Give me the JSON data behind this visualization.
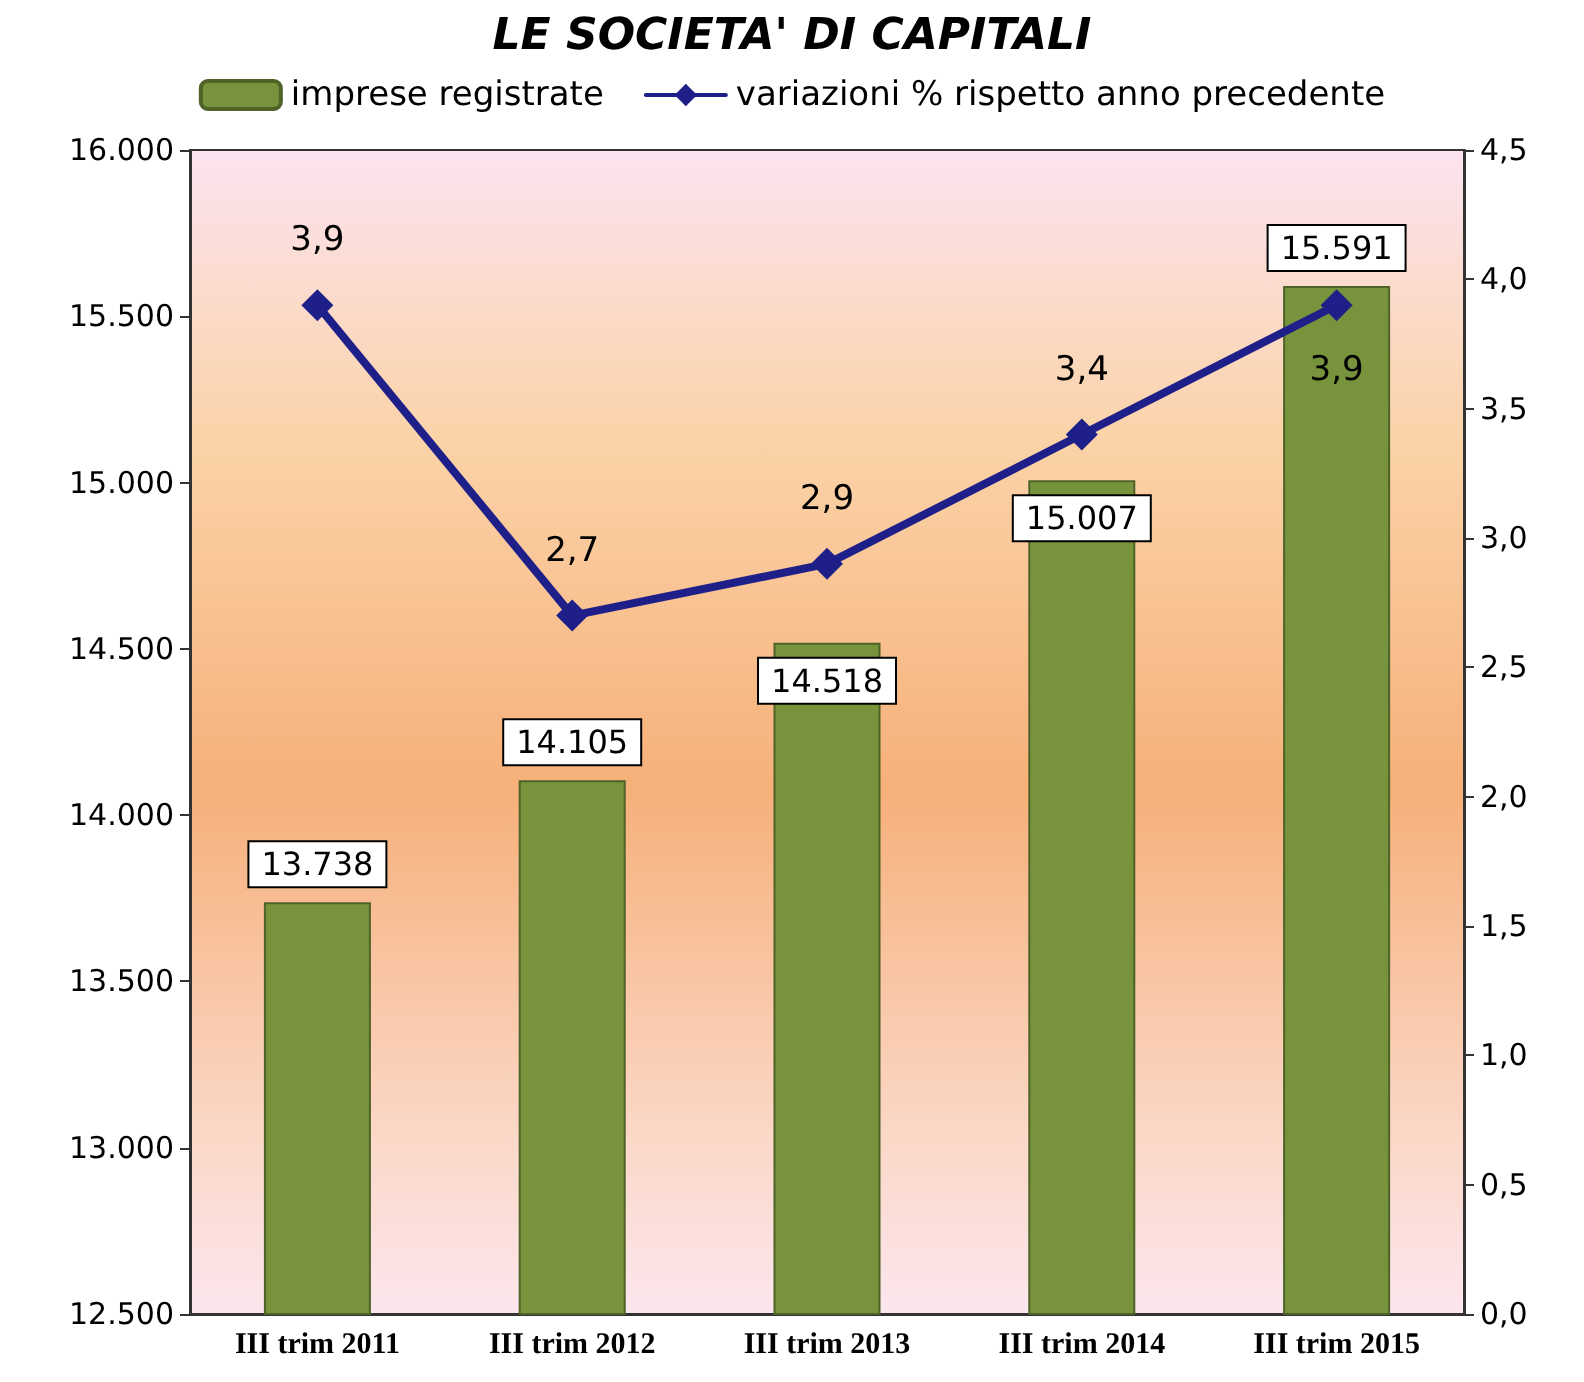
{
  "chart_data": {
    "type": "bar",
    "title": "LE SOCIETA' DI CAPITALI",
    "categories": [
      "III trim 2011",
      "III trim 2012",
      "III trim 2013",
      "III trim 2014",
      "III trim 2015"
    ],
    "series": [
      {
        "name": "imprese registrate",
        "color": "#77933c",
        "values": [
          13738,
          14105,
          14518,
          15007,
          15591
        ],
        "value_labels": [
          "13.738",
          "14.105",
          "14.518",
          "15.007",
          "15.591"
        ]
      },
      {
        "name": "variazioni % rispetto anno precedente",
        "type": "line",
        "axis": "y2",
        "color": "#1f1f8a",
        "marker": "diamond",
        "values": [
          3.9,
          2.7,
          2.9,
          3.4,
          3.9
        ],
        "value_labels": [
          "3,9",
          "2,7",
          "2,9",
          "3,4",
          "3,9"
        ]
      }
    ],
    "ylim": [
      12500,
      16000
    ],
    "yticks": [
      {
        "value": 12500,
        "label": "12.500"
      },
      {
        "value": 13000,
        "label": "13.000"
      },
      {
        "value": 13500,
        "label": "13.500"
      },
      {
        "value": 14000,
        "label": "14.000"
      },
      {
        "value": 14500,
        "label": "14.500"
      },
      {
        "value": 15000,
        "label": "15.000"
      },
      {
        "value": 15500,
        "label": "15.500"
      },
      {
        "value": 16000,
        "label": "16.000"
      }
    ],
    "y2lim": [
      0,
      4.5
    ],
    "y2ticks": [
      {
        "value": 0,
        "label": "0,0"
      },
      {
        "value": 0.5,
        "label": "0,5"
      },
      {
        "value": 1,
        "label": "1,0"
      },
      {
        "value": 1.5,
        "label": "1,5"
      },
      {
        "value": 2,
        "label": "2,0"
      },
      {
        "value": 2.5,
        "label": "2,5"
      },
      {
        "value": 3,
        "label": "3,0"
      },
      {
        "value": 3.5,
        "label": "3,5"
      },
      {
        "value": 4,
        "label": "4,0"
      },
      {
        "value": 4.5,
        "label": "4,5"
      }
    ],
    "legend": "top",
    "grid": false
  }
}
